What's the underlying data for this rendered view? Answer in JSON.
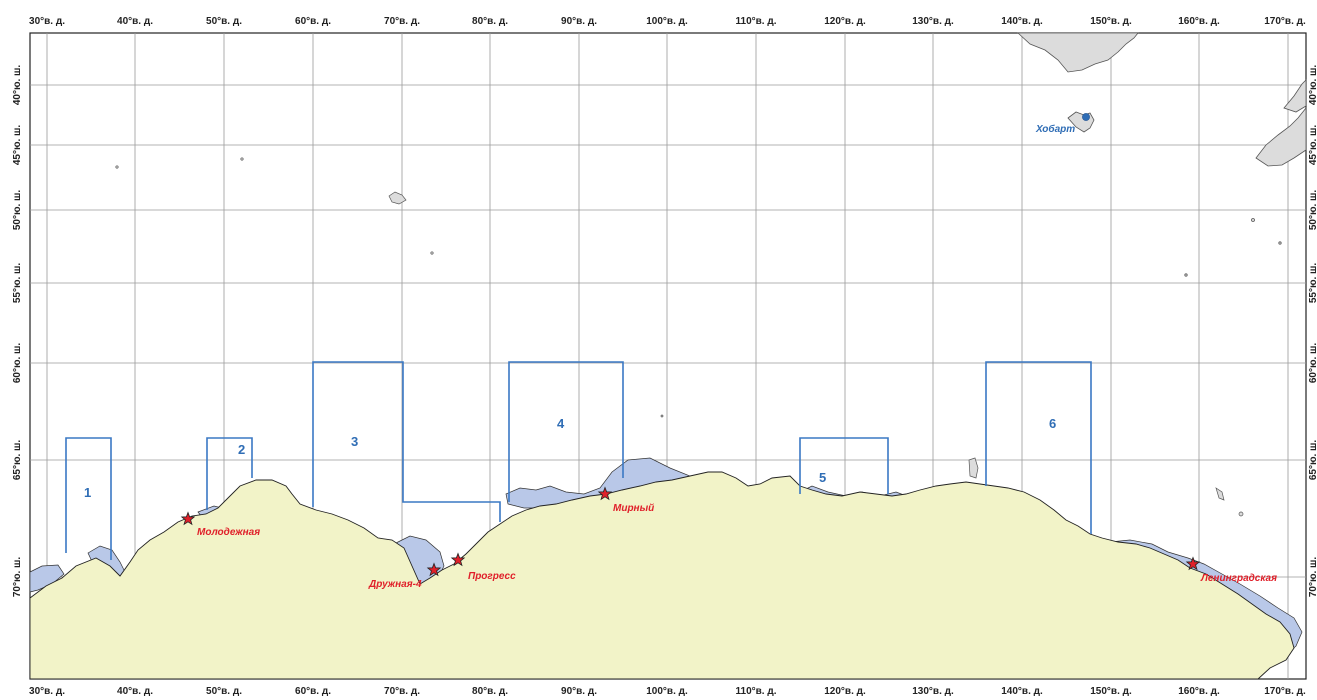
{
  "map": {
    "lon_labels": [
      "30°в. д.",
      "40°в. д.",
      "50°в. д.",
      "60°в. д.",
      "70°в. д.",
      "80°в. д.",
      "90°в. д.",
      "100°в. д.",
      "110°в. д.",
      "120°в. д.",
      "130°в. д.",
      "140°в. д.",
      "150°в. д.",
      "160°в. д.",
      "170°в. д."
    ],
    "lat_labels": [
      "40°ю. ш.",
      "45°ю. ш.",
      "50°ю. ш.",
      "55°ю. ш.",
      "60°ю. ш.",
      "65°ю. ш.",
      "70°ю. ш."
    ],
    "zones": [
      {
        "id": "1",
        "label": "1"
      },
      {
        "id": "2",
        "label": "2"
      },
      {
        "id": "3",
        "label": "3"
      },
      {
        "id": "4",
        "label": "4"
      },
      {
        "id": "5",
        "label": "5"
      },
      {
        "id": "6",
        "label": "6"
      }
    ],
    "stations": [
      {
        "name": "Молодежная"
      },
      {
        "name": "Дружная-4"
      },
      {
        "name": "Прогресс"
      },
      {
        "name": "Мирный"
      },
      {
        "name": "Ленинградская"
      }
    ],
    "city": {
      "name": "Хобарт"
    },
    "colors": {
      "land": "#f2f3c8",
      "ice": "#b9c8e8",
      "australia": "#dcdcdc",
      "grid": "#9a9a9a",
      "zone": "#3a78c4",
      "station": "#e0202a",
      "city": "#2f6db5"
    }
  }
}
